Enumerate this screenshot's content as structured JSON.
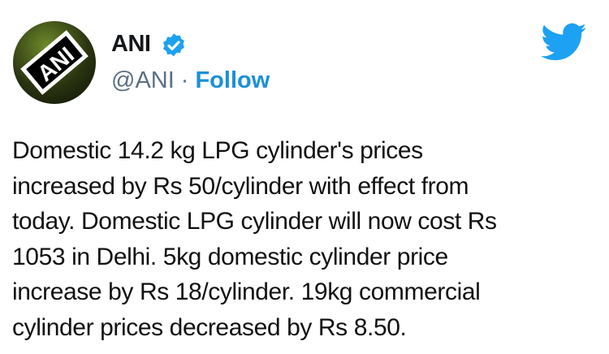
{
  "account": {
    "name": "ANI",
    "handle": "@ANI",
    "separator": "·",
    "follow_label": "Follow",
    "verified": true,
    "avatar_logo_text": "ANI"
  },
  "icons": {
    "verified": "verified-badge-icon",
    "brand": "twitter-bird-icon"
  },
  "colors": {
    "accent": "#1b8fd8",
    "badge": "#1da1f2",
    "handle": "#5b7083"
  },
  "tweet": {
    "lines": [
      "Domestic 14.2 kg LPG cylinder's prices",
      "increased by Rs 50/cylinder with effect from",
      "today. Domestic LPG cylinder will now cost Rs",
      "1053 in Delhi. 5kg domestic cylinder price",
      "increase by Rs 18/cylinder. 19kg commercial",
      "cylinder prices decreased by Rs 8.50."
    ]
  }
}
